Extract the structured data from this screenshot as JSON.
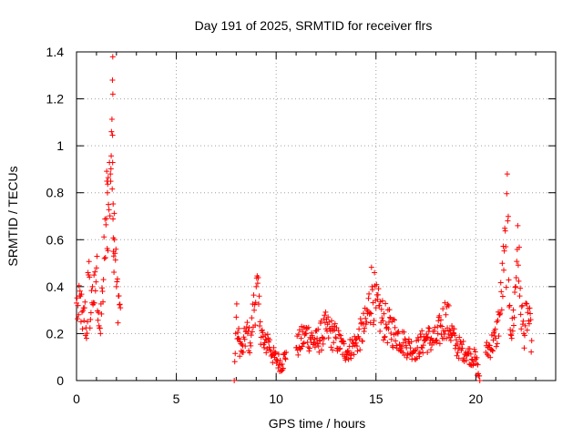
{
  "chart_data": {
    "type": "scatter",
    "title": "Day 191 of 2025, SRMTID for receiver flrs",
    "xlabel": "GPS time / hours",
    "ylabel": "SRMTID / TECUs",
    "xlim": [
      0,
      24
    ],
    "ylim": [
      0,
      1.4
    ],
    "xticks": [
      "0",
      "5",
      "10",
      "15",
      "20"
    ],
    "yticks": [
      "0",
      "0.2",
      "0.4",
      "0.6",
      "0.8",
      "1",
      "1.2",
      "1.4"
    ],
    "grid": true,
    "marker": "+",
    "color": "#ff0000",
    "series": [
      {
        "name": "SRMTID",
        "segments": [
          {
            "x_range": [
              0.0,
              2.2
            ],
            "points": [
              [
                0.0,
                0.33
              ],
              [
                0.1,
                0.28
              ],
              [
                0.2,
                0.36
              ],
              [
                0.3,
                0.22
              ],
              [
                0.4,
                0.31
              ],
              [
                0.5,
                0.18
              ],
              [
                0.6,
                0.45
              ],
              [
                0.7,
                0.26
              ],
              [
                0.8,
                0.4
              ],
              [
                0.9,
                0.33
              ],
              [
                1.0,
                0.48
              ],
              [
                1.1,
                0.29
              ],
              [
                1.2,
                0.2
              ],
              [
                1.3,
                0.38
              ],
              [
                1.4,
                0.52
              ],
              [
                1.5,
                0.69
              ],
              [
                1.55,
                0.8
              ],
              [
                1.6,
                0.75
              ],
              [
                1.7,
                0.88
              ],
              [
                1.75,
                1.06
              ],
              [
                1.8,
                1.28
              ],
              [
                1.82,
                1.22
              ],
              [
                1.85,
                0.55
              ],
              [
                1.9,
                0.6
              ],
              [
                2.0,
                0.4
              ],
              [
                2.1,
                0.36
              ],
              [
                2.2,
                0.31
              ]
            ]
          },
          {
            "x_range": [
              7.9,
              10.5
            ],
            "points": [
              [
                7.9,
                0.0
              ],
              [
                8.0,
                0.27
              ],
              [
                8.1,
                0.18
              ],
              [
                8.3,
                0.12
              ],
              [
                8.5,
                0.21
              ],
              [
                8.7,
                0.16
              ],
              [
                9.0,
                0.4
              ],
              [
                9.2,
                0.25
              ],
              [
                9.4,
                0.14
              ],
              [
                9.6,
                0.18
              ],
              [
                9.8,
                0.11
              ],
              [
                10.0,
                0.09
              ],
              [
                10.3,
                0.07
              ],
              [
                10.5,
                0.12
              ]
            ]
          },
          {
            "x_range": [
              10.5,
              20.2
            ],
            "points": [
              [
                11.0,
                0.14
              ],
              [
                11.5,
                0.2
              ],
              [
                12.0,
                0.16
              ],
              [
                12.5,
                0.22
              ],
              [
                13.0,
                0.18
              ],
              [
                13.5,
                0.12
              ],
              [
                14.0,
                0.16
              ],
              [
                14.5,
                0.24
              ],
              [
                14.8,
                0.4
              ],
              [
                15.0,
                0.31
              ],
              [
                15.5,
                0.24
              ],
              [
                16.0,
                0.2
              ],
              [
                16.5,
                0.15
              ],
              [
                17.0,
                0.13
              ],
              [
                17.5,
                0.18
              ],
              [
                18.0,
                0.17
              ],
              [
                18.5,
                0.28
              ],
              [
                19.0,
                0.15
              ],
              [
                19.5,
                0.12
              ],
              [
                20.0,
                0.09
              ],
              [
                20.2,
                0.0
              ]
            ]
          },
          {
            "x_range": [
              20.3,
              22.8
            ],
            "points": [
              [
                20.5,
                0.12
              ],
              [
                21.0,
                0.18
              ],
              [
                21.2,
                0.28
              ],
              [
                21.4,
                0.47
              ],
              [
                21.5,
                0.57
              ],
              [
                21.6,
                0.68
              ],
              [
                21.7,
                0.32
              ],
              [
                21.8,
                0.18
              ],
              [
                22.0,
                0.4
              ],
              [
                22.1,
                0.66
              ],
              [
                22.2,
                0.36
              ],
              [
                22.4,
                0.2
              ],
              [
                22.6,
                0.29
              ],
              [
                22.8,
                0.17
              ]
            ]
          }
        ]
      }
    ]
  }
}
